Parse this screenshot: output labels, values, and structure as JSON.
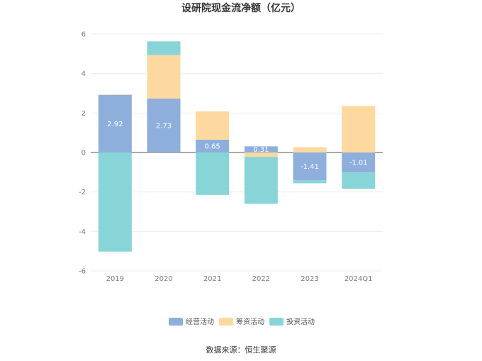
{
  "chart_data": {
    "type": "bar",
    "stacked": true,
    "title": "设研院现金流净额（亿元）",
    "categories": [
      "2019",
      "2020",
      "2021",
      "2022",
      "2023",
      "2024Q1"
    ],
    "series": [
      {
        "name": "经营活动",
        "color": "#8eaedc",
        "values": [
          2.92,
          2.73,
          0.65,
          0.31,
          -1.41,
          -1.01
        ]
      },
      {
        "name": "筹资活动",
        "color": "#fdd9a0",
        "values": [
          0.02,
          2.2,
          1.43,
          -0.22,
          0.27,
          2.35
        ]
      },
      {
        "name": "投资活动",
        "color": "#88d5d8",
        "values": [
          -5.02,
          0.7,
          -2.15,
          -2.38,
          -0.15,
          -0.83
        ]
      }
    ],
    "data_labels": [
      "2.92",
      "2.73",
      "0.65",
      "0.31",
      "-1.41",
      "-1.01"
    ],
    "ylim": [
      -6,
      6
    ],
    "yticks": [
      "6",
      "4",
      "2",
      "0",
      "-2",
      "-4",
      "-6"
    ],
    "ytick_values": [
      6,
      4,
      2,
      0,
      -2,
      -4,
      -6
    ],
    "grid": true,
    "legend_position": "bottom"
  },
  "source": "数据来源：恒生聚源"
}
